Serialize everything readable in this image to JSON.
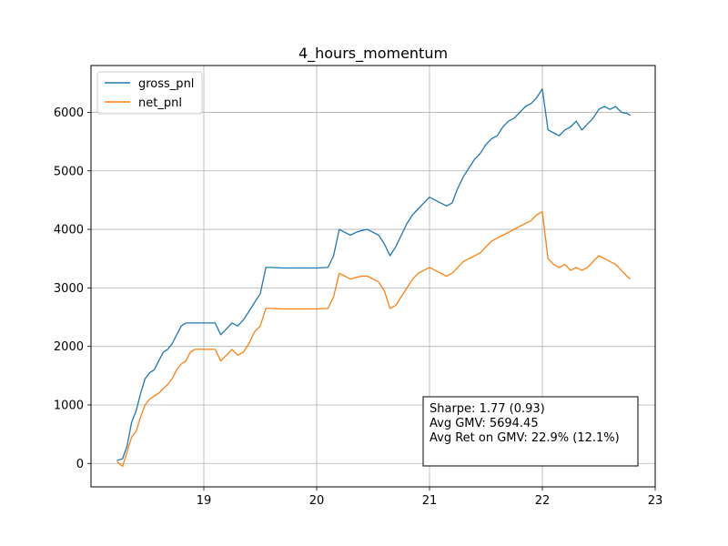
{
  "chart_data": {
    "type": "line",
    "title": "4_hours_momentum",
    "xlabel": "",
    "ylabel": "",
    "xlim": [
      18.0,
      23.0
    ],
    "ylim": [
      -400,
      6800
    ],
    "x_ticks": [
      19,
      20,
      21,
      22,
      23
    ],
    "y_ticks": [
      0,
      1000,
      2000,
      3000,
      4000,
      5000,
      6000
    ],
    "grid": true,
    "legend_position": "top-left",
    "colors": {
      "gross_pnl": "#1f77b4",
      "net_pnl": "#ff7f0e"
    },
    "series": [
      {
        "name": "gross_pnl",
        "x": [
          18.23,
          18.28,
          18.32,
          18.36,
          18.4,
          18.44,
          18.48,
          18.52,
          18.56,
          18.6,
          18.64,
          18.68,
          18.72,
          18.76,
          18.8,
          18.84,
          18.88,
          18.92,
          19.0,
          19.1,
          19.15,
          19.2,
          19.25,
          19.3,
          19.35,
          19.4,
          19.45,
          19.5,
          19.55,
          19.6,
          19.7,
          19.8,
          19.9,
          20.0,
          20.1,
          20.15,
          20.2,
          20.25,
          20.3,
          20.35,
          20.4,
          20.45,
          20.5,
          20.55,
          20.6,
          20.65,
          20.7,
          20.75,
          20.8,
          20.85,
          20.9,
          20.95,
          21.0,
          21.05,
          21.1,
          21.15,
          21.2,
          21.25,
          21.3,
          21.35,
          21.4,
          21.45,
          21.5,
          21.55,
          21.6,
          21.65,
          21.7,
          21.75,
          21.8,
          21.85,
          21.9,
          21.95,
          22.0,
          22.05,
          22.1,
          22.15,
          22.2,
          22.25,
          22.3,
          22.35,
          22.4,
          22.45,
          22.5,
          22.55,
          22.6,
          22.65,
          22.7,
          22.75,
          22.78
        ],
        "y": [
          50,
          80,
          300,
          700,
          900,
          1200,
          1450,
          1550,
          1600,
          1750,
          1900,
          1950,
          2050,
          2200,
          2350,
          2400,
          2400,
          2400,
          2400,
          2400,
          2200,
          2300,
          2400,
          2350,
          2450,
          2600,
          2750,
          2900,
          3350,
          3350,
          3340,
          3340,
          3340,
          3340,
          3350,
          3550,
          4000,
          3950,
          3900,
          3950,
          3980,
          4000,
          3950,
          3900,
          3750,
          3550,
          3700,
          3900,
          4100,
          4250,
          4350,
          4450,
          4550,
          4500,
          4450,
          4400,
          4450,
          4700,
          4900,
          5050,
          5200,
          5300,
          5450,
          5550,
          5600,
          5750,
          5850,
          5900,
          6000,
          6100,
          6150,
          6250,
          6400,
          5700,
          5650,
          5600,
          5700,
          5750,
          5850,
          5700,
          5800,
          5900,
          6050,
          6100,
          6050,
          6100,
          6000,
          5980,
          5950
        ]
      },
      {
        "name": "net_pnl",
        "x": [
          18.23,
          18.28,
          18.32,
          18.36,
          18.4,
          18.44,
          18.48,
          18.52,
          18.56,
          18.6,
          18.64,
          18.68,
          18.72,
          18.76,
          18.8,
          18.84,
          18.88,
          18.92,
          19.0,
          19.1,
          19.15,
          19.2,
          19.25,
          19.3,
          19.35,
          19.4,
          19.45,
          19.5,
          19.55,
          19.6,
          19.7,
          19.8,
          19.9,
          20.0,
          20.1,
          20.15,
          20.2,
          20.25,
          20.3,
          20.35,
          20.4,
          20.45,
          20.5,
          20.55,
          20.6,
          20.65,
          20.7,
          20.75,
          20.8,
          20.85,
          20.9,
          20.95,
          21.0,
          21.05,
          21.1,
          21.15,
          21.2,
          21.25,
          21.3,
          21.35,
          21.4,
          21.45,
          21.5,
          21.55,
          21.6,
          21.65,
          21.7,
          21.75,
          21.8,
          21.85,
          21.9,
          21.95,
          22.0,
          22.05,
          22.1,
          22.15,
          22.2,
          22.25,
          22.3,
          22.35,
          22.4,
          22.45,
          22.5,
          22.55,
          22.6,
          22.65,
          22.7,
          22.75,
          22.78
        ],
        "y": [
          30,
          -50,
          200,
          450,
          550,
          800,
          1000,
          1100,
          1150,
          1200,
          1280,
          1350,
          1450,
          1600,
          1700,
          1750,
          1900,
          1950,
          1950,
          1950,
          1750,
          1850,
          1950,
          1850,
          1900,
          2050,
          2250,
          2350,
          2650,
          2650,
          2640,
          2640,
          2640,
          2640,
          2650,
          2850,
          3250,
          3200,
          3150,
          3180,
          3200,
          3200,
          3150,
          3100,
          2950,
          2650,
          2700,
          2850,
          3000,
          3150,
          3250,
          3300,
          3350,
          3300,
          3250,
          3200,
          3250,
          3350,
          3450,
          3500,
          3550,
          3600,
          3700,
          3800,
          3850,
          3900,
          3950,
          4000,
          4050,
          4100,
          4150,
          4250,
          4300,
          3500,
          3400,
          3350,
          3400,
          3300,
          3350,
          3300,
          3350,
          3450,
          3550,
          3500,
          3450,
          3400,
          3300,
          3200,
          3150
        ]
      }
    ],
    "stats_box": {
      "lines": [
        "Sharpe: 1.77 (0.93)",
        "Avg GMV: 5694.45",
        "Avg Ret on GMV: 22.9% (12.1%)"
      ]
    }
  }
}
